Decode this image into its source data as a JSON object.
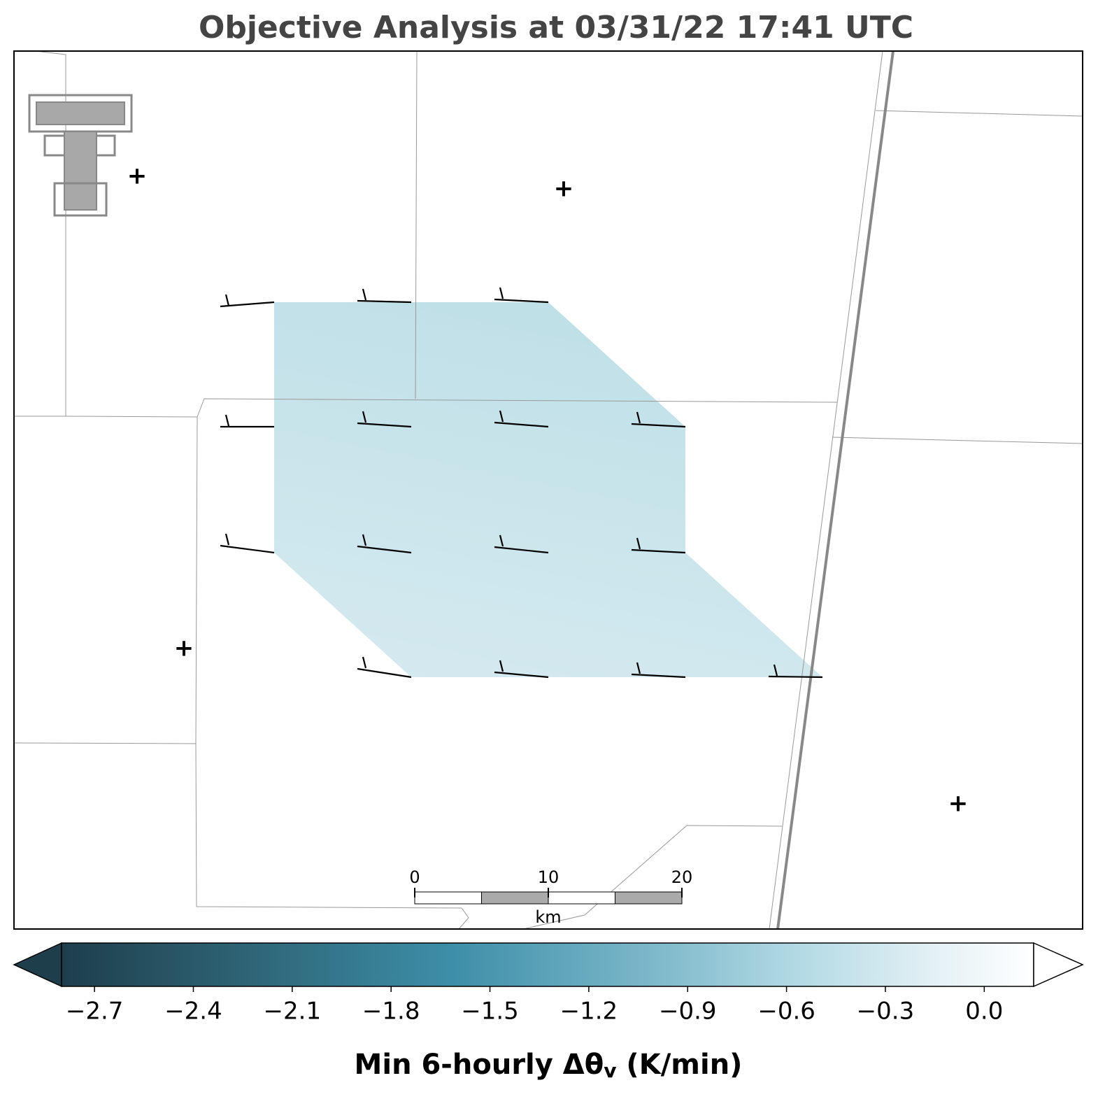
{
  "title": "Objective Analysis at 03/31/22 17:41 UTC",
  "colorbar": {
    "label": [
      "Min 6-hourly Δθ",
      "v",
      " (K/min)"
    ],
    "clim": [
      -2.8,
      0.15
    ],
    "ticks": [
      {
        "value": -2.7,
        "label": "−2.7"
      },
      {
        "value": -2.4,
        "label": "−2.4"
      },
      {
        "value": -2.1,
        "label": "−2.1"
      },
      {
        "value": -1.8,
        "label": "−1.8"
      },
      {
        "value": -1.5,
        "label": "−1.5"
      },
      {
        "value": -1.2,
        "label": "−1.2"
      },
      {
        "value": -0.9,
        "label": "−0.9"
      },
      {
        "value": -0.6,
        "label": "−0.6"
      },
      {
        "value": -0.3,
        "label": "−0.3"
      },
      {
        "value": 0.0,
        "label": "0.0"
      }
    ]
  },
  "scale_bar": {
    "ticks": [
      0,
      10,
      20
    ],
    "unit": "km"
  }
}
